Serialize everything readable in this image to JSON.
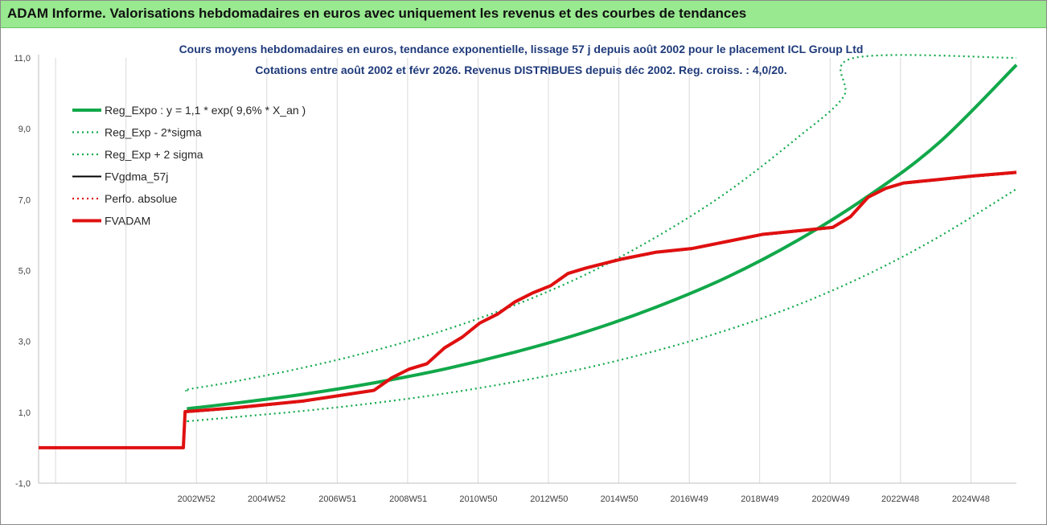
{
  "page": {
    "banner_title": "ADAM Informe. Valorisations hebdomadaires en euros avec uniquement les revenus et des courbes de tendances"
  },
  "chart_data": {
    "type": "line",
    "title": "Cours moyens hebdomadaires en euros, tendance exponentielle, lissage 57 j depuis août 2002 pour le placement ICL Group Ltd",
    "subtitle": "Cotations entre août 2002 et févr 2026. Revenus DISTRIBUES depuis déc 2002.  Reg. croiss. : 4,0/20.",
    "xlabel": "",
    "ylabel": "",
    "ylim": [
      -1.0,
      11.0
    ],
    "xlim": [
      1998.5,
      2026.2
    ],
    "y_ticks": [
      -1.0,
      1.0,
      3.0,
      5.0,
      7.0,
      9.0,
      11.0
    ],
    "y_tick_labels": [
      "-1,0",
      "1,0",
      "3,0",
      "5,0",
      "7,0",
      "9,0",
      "11,0"
    ],
    "x_ticks": [
      2002.97,
      2004.96,
      2006.97,
      2008.97,
      2010.96,
      2012.96,
      2014.95,
      2016.93,
      2018.93,
      2020.94,
      2022.91,
      2024.91
    ],
    "x_tick_labels": [
      "2002W52",
      "2004W52",
      "2006W51",
      "2008W51",
      "2010W50",
      "2012W50",
      "2014W50",
      "2016W49",
      "2018W49",
      "2020W49",
      "2022W48",
      "2024W48"
    ],
    "grid": "vertical",
    "legend_position": "top-left",
    "colors": {
      "reg_expo": "#11a84a",
      "fadam": "#e01010",
      "fvgdma": "#000000",
      "grid": "#d9d9d9",
      "banner": "#98e98f"
    },
    "series": [
      {
        "name": "Reg_Expo : y = 1,1 * exp( 9,6% *  X_an )",
        "style": "solid-thick",
        "color": "#11a84a",
        "x": [
          2002.7,
          2004,
          2006,
          2008,
          2010,
          2012,
          2014,
          2016,
          2018,
          2020,
          2022,
          2024,
          2026.2
        ],
        "values": [
          1.1,
          1.25,
          1.51,
          1.83,
          2.22,
          2.7,
          3.27,
          3.97,
          4.81,
          5.85,
          7.1,
          8.6,
          10.8
        ]
      },
      {
        "name": "Reg_Exp - 2*sigma",
        "style": "dotted",
        "color": "#11a84a",
        "x": [
          2002.7,
          2002.75,
          2004,
          2006,
          2008,
          2010,
          2012,
          2014,
          2016,
          2018,
          2020,
          2022,
          2024,
          2026.2
        ],
        "values": [
          0.75,
          0.75,
          0.86,
          1.04,
          1.26,
          1.53,
          1.86,
          2.25,
          2.74,
          3.32,
          4.03,
          4.9,
          5.95,
          7.3
        ]
      },
      {
        "name": "Reg_Exp + 2 sigma",
        "style": "dotted",
        "color": "#11a84a",
        "x": [
          2002.7,
          2002.75,
          2004,
          2006,
          2008,
          2010,
          2012,
          2014,
          2016,
          2018,
          2020,
          2021.3,
          2021.6,
          2026.2
        ],
        "values": [
          1.6,
          1.65,
          1.86,
          2.26,
          2.74,
          3.32,
          4.03,
          4.89,
          5.95,
          7.21,
          8.75,
          9.9,
          11.0,
          11.0
        ]
      },
      {
        "name": "FVgdma_57j",
        "style": "solid",
        "color": "#000000",
        "x": [
          1998.5,
          2002.6,
          2002.65,
          2004,
          2005,
          2006,
          2007,
          2008,
          2008.5,
          2009,
          2009.5,
          2010,
          2010.5,
          2011,
          2011.5,
          2012,
          2012.5,
          2013,
          2013.5,
          2014,
          2015,
          2016,
          2017,
          2018,
          2019,
          2020,
          2021,
          2021.5,
          2022,
          2022.5,
          2023,
          2024,
          2025,
          2026.2
        ],
        "values": [
          0.0,
          0.0,
          1.0,
          1.1,
          1.2,
          1.3,
          1.45,
          1.6,
          1.95,
          2.2,
          2.35,
          2.8,
          3.1,
          3.5,
          3.75,
          4.1,
          4.35,
          4.55,
          4.9,
          5.05,
          5.3,
          5.5,
          5.6,
          5.8,
          6.0,
          6.1,
          6.2,
          6.5,
          7.05,
          7.3,
          7.45,
          7.55,
          7.65,
          7.75
        ]
      },
      {
        "name": "Perfo. absolue",
        "style": "dotted",
        "color": "#e01010",
        "x": [
          1998.5,
          2002.6,
          2002.65,
          2004,
          2005,
          2006,
          2007,
          2008,
          2008.5,
          2009,
          2009.5,
          2010,
          2010.5,
          2011,
          2011.5,
          2012,
          2012.5,
          2013,
          2013.5,
          2014,
          2015,
          2016,
          2017,
          2018,
          2019,
          2020,
          2021,
          2021.5,
          2022,
          2022.5,
          2023,
          2024,
          2025,
          2026.2
        ],
        "values": [
          0.0,
          0.0,
          1.0,
          1.1,
          1.2,
          1.3,
          1.45,
          1.6,
          1.95,
          2.2,
          2.35,
          2.8,
          3.1,
          3.5,
          3.75,
          4.1,
          4.35,
          4.55,
          4.9,
          5.05,
          5.3,
          5.5,
          5.6,
          5.8,
          6.0,
          6.1,
          6.2,
          6.5,
          7.05,
          7.3,
          7.45,
          7.55,
          7.65,
          7.75
        ]
      },
      {
        "name": "FVADAM",
        "style": "solid-thick",
        "color": "#e01010",
        "x": [
          1998.5,
          2002.6,
          2002.65,
          2004,
          2005,
          2006,
          2007,
          2008,
          2008.5,
          2009,
          2009.5,
          2010,
          2010.5,
          2011,
          2011.5,
          2012,
          2012.5,
          2013,
          2013.5,
          2014,
          2015,
          2016,
          2017,
          2018,
          2019,
          2020,
          2021,
          2021.5,
          2022,
          2022.5,
          2023,
          2024,
          2025,
          2026.2
        ],
        "values": [
          0.0,
          0.0,
          1.02,
          1.12,
          1.22,
          1.32,
          1.47,
          1.62,
          1.97,
          2.22,
          2.37,
          2.82,
          3.12,
          3.52,
          3.77,
          4.12,
          4.37,
          4.57,
          4.92,
          5.07,
          5.32,
          5.52,
          5.62,
          5.82,
          6.02,
          6.12,
          6.22,
          6.52,
          7.07,
          7.32,
          7.47,
          7.57,
          7.67,
          7.77
        ]
      }
    ]
  }
}
